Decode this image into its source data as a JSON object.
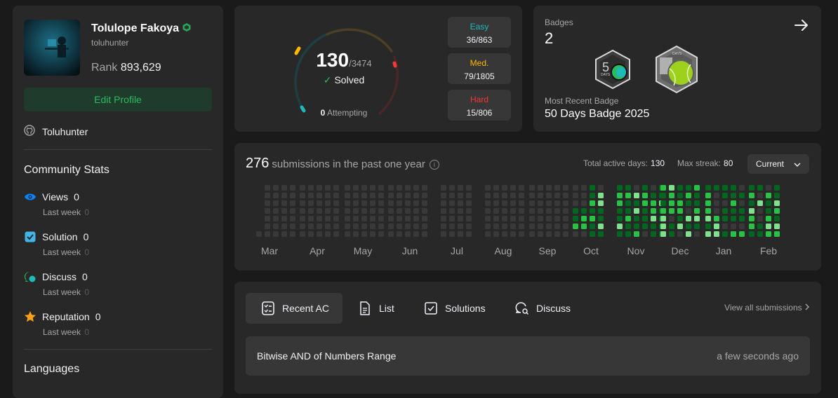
{
  "profile": {
    "name": "Tolulope Fakoya",
    "username": "toluhunter",
    "rank_label": "Rank",
    "rank_value": "893,629",
    "edit_button": "Edit Profile",
    "github": "Toluhunter"
  },
  "community": {
    "title": "Community Stats",
    "stats": [
      {
        "label": "Views",
        "value": "0",
        "sub_label": "Last week",
        "sub_value": "0",
        "icon": "eye-icon",
        "color": "#0a84ff"
      },
      {
        "label": "Solution",
        "value": "0",
        "sub_label": "Last week",
        "sub_value": "0",
        "icon": "solution-check-icon",
        "color": "#41b6e6"
      },
      {
        "label": "Discuss",
        "value": "0",
        "sub_label": "Last week",
        "sub_value": "0",
        "icon": "discuss-icon",
        "color": "#2cbb5d"
      },
      {
        "label": "Reputation",
        "value": "0",
        "sub_label": "Last week",
        "sub_value": "0",
        "icon": "star-icon",
        "color": "#ffa116"
      }
    ]
  },
  "languages_title": "Languages",
  "progress": {
    "solved": "130",
    "total": "/3474",
    "solved_label": "Solved",
    "attempting_count": "0",
    "attempting_label": "Attempting",
    "difficulties": [
      {
        "label": "Easy",
        "value": "36/863",
        "color": "#1cbaba"
      },
      {
        "label": "Med.",
        "value": "79/1805",
        "color": "#ffb700"
      },
      {
        "label": "Hard",
        "value": "15/806",
        "color": "#f63737"
      }
    ]
  },
  "badges": {
    "title": "Badges",
    "count": "2",
    "recent_label": "Most Recent Badge",
    "recent_value": "50 Days Badge 2025",
    "badge1_text": "DAYS",
    "badge2_text": "DAYS"
  },
  "heatmap": {
    "count": "276",
    "title": "submissions in the past one year",
    "active_label": "Total active days:",
    "active_value": "130",
    "streak_label": "Max streak:",
    "streak_value": "80",
    "dropdown": "Current",
    "months": [
      "Mar",
      "Apr",
      "May",
      "Jun",
      "Jul",
      "Aug",
      "Sep",
      "Oct",
      "Nov",
      "Dec",
      "Jan",
      "Feb"
    ],
    "colors": [
      "#393939",
      "#016620",
      "#28c244",
      "#7fe18b"
    ]
  },
  "recent": {
    "tabs": [
      {
        "label": "Recent AC",
        "icon": "checklist-icon",
        "active": true
      },
      {
        "label": "List",
        "icon": "list-doc-icon",
        "active": false
      },
      {
        "label": "Solutions",
        "icon": "solution-doc-icon",
        "active": false
      },
      {
        "label": "Discuss",
        "icon": "discuss-search-icon",
        "active": false
      }
    ],
    "view_all": "View all submissions",
    "items": [
      {
        "title": "Bitwise AND of Numbers Range",
        "time": "a few seconds ago"
      }
    ]
  }
}
